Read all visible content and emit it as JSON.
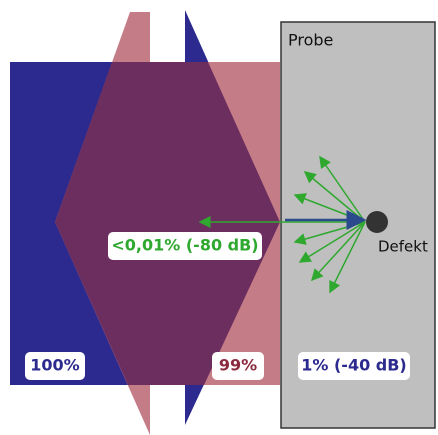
{
  "probe_label": "Probe",
  "defect_label": "Defekt",
  "labels": {
    "reflected": "<0,01% (-80 dB)",
    "incident": "100%",
    "transmitted": "99%",
    "probe_signal": "1% (-40 dB)"
  }
}
